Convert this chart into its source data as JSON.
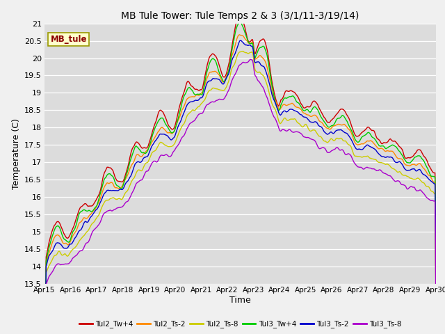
{
  "title": "MB Tule Tower: Tule Temps 2 & 3 (3/1/11-3/19/14)",
  "xlabel": "Time",
  "ylabel": "Temperature (C)",
  "ylim": [
    13.5,
    21.0
  ],
  "fig_bg": "#f0f0f0",
  "plot_bg": "#dcdcdc",
  "legend_label": "MB_tule",
  "series_order": [
    "Tul2_Tw+4",
    "Tul2_Ts-2",
    "Tul2_Ts-8",
    "Tul3_Tw+4",
    "Tul3_Ts-2",
    "Tul3_Ts-8"
  ],
  "series": {
    "Tul2_Tw+4": {
      "color": "#cc0000",
      "lw": 1.0
    },
    "Tul2_Ts-2": {
      "color": "#ff8800",
      "lw": 1.0
    },
    "Tul2_Ts-8": {
      "color": "#cccc00",
      "lw": 1.0
    },
    "Tul3_Tw+4": {
      "color": "#00cc00",
      "lw": 1.0
    },
    "Tul3_Ts-2": {
      "color": "#0000cc",
      "lw": 1.0
    },
    "Tul3_Ts-8": {
      "color": "#aa00cc",
      "lw": 1.0
    }
  },
  "xtick_labels": [
    "Apr 15",
    "Apr 16",
    "Apr 17",
    "Apr 18",
    "Apr 19",
    "Apr 20",
    "Apr 21",
    "Apr 22",
    "Apr 23",
    "Apr 24",
    "Apr 25",
    "Apr 26",
    "Apr 27",
    "Apr 28",
    "Apr 29",
    "Apr 30"
  ],
  "ytick_values": [
    13.5,
    14.0,
    14.5,
    15.0,
    15.5,
    16.0,
    16.5,
    17.0,
    17.5,
    18.0,
    18.5,
    19.0,
    19.5,
    20.0,
    20.5,
    21.0
  ]
}
